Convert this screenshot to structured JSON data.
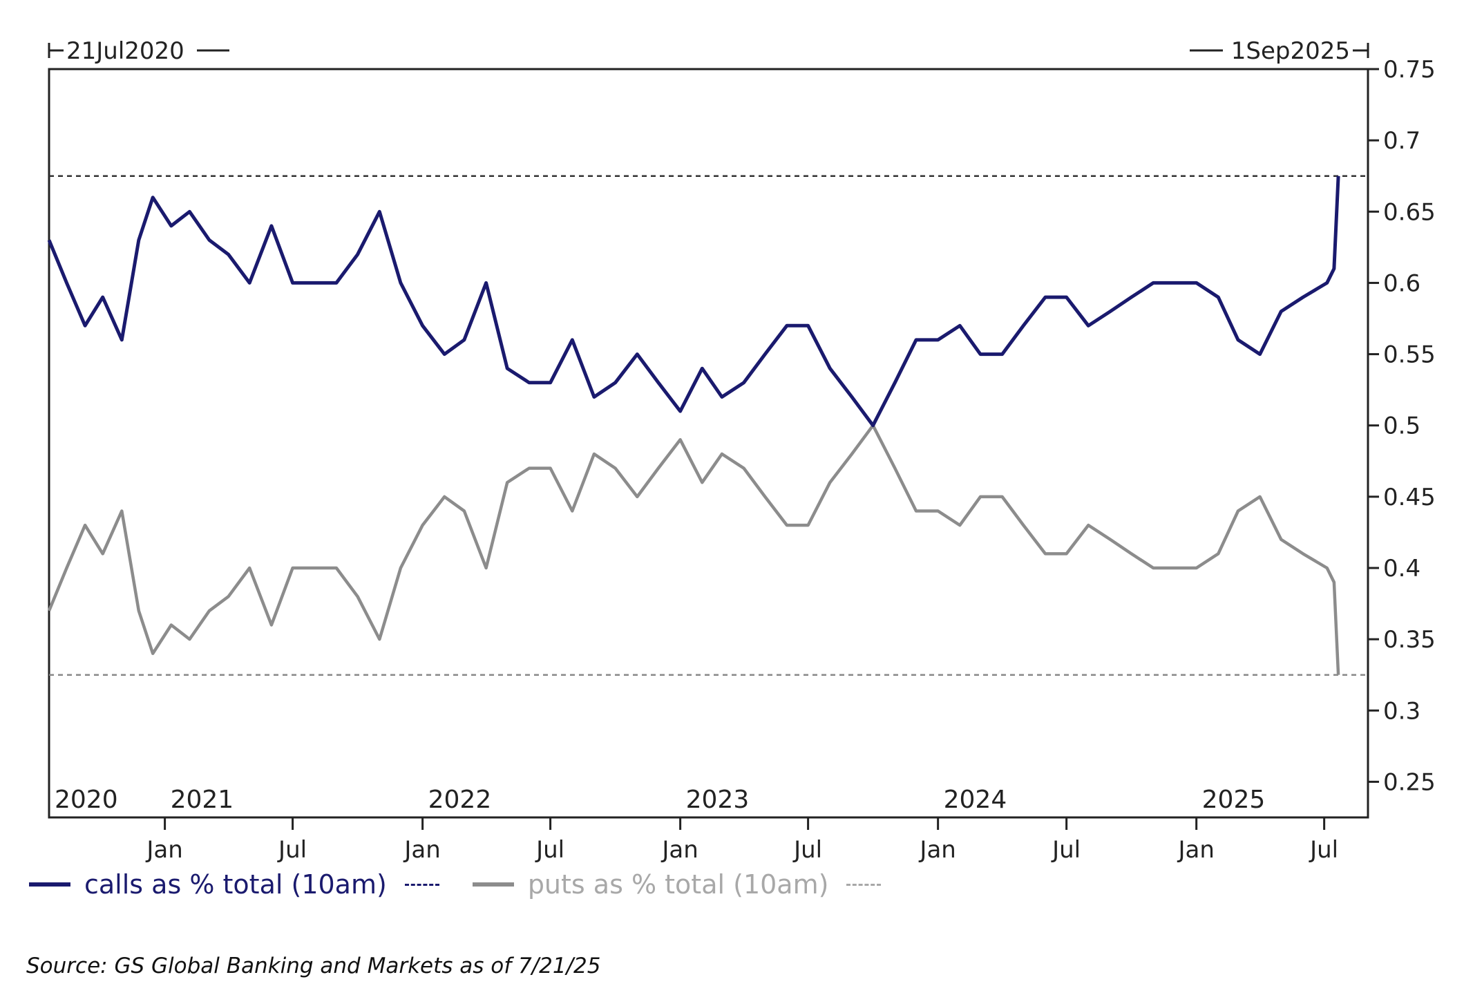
{
  "range_start_label": "21Jul2020",
  "range_end_label": "1Sep2025",
  "source": "Source: GS Global Banking and Markets as of 7/21/25",
  "colors": {
    "calls": "#1a1a6e",
    "puts": "#8c8c8c",
    "axis": "#222222"
  },
  "chart_data": {
    "type": "line",
    "x_range": [
      "2020-07-21",
      "2025-09-01"
    ],
    "y_axis_position": "right",
    "ylim": [
      0.225,
      0.75
    ],
    "yticks": [
      0.25,
      0.3,
      0.35,
      0.4,
      0.45,
      0.5,
      0.55,
      0.6,
      0.65,
      0.7,
      0.75
    ],
    "ytick_labels": [
      "0.25",
      "0.3",
      "0.35",
      "0.4",
      "0.45",
      "0.5",
      "0.55",
      "0.6",
      "0.65",
      "0.7",
      "0.75"
    ],
    "xticks": [
      {
        "date": "2021-01-01",
        "label": "Jan"
      },
      {
        "date": "2021-07-01",
        "label": "Jul"
      },
      {
        "date": "2022-01-01",
        "label": "Jan"
      },
      {
        "date": "2022-07-01",
        "label": "Jul"
      },
      {
        "date": "2023-01-01",
        "label": "Jan"
      },
      {
        "date": "2023-07-01",
        "label": "Jul"
      },
      {
        "date": "2024-01-01",
        "label": "Jan"
      },
      {
        "date": "2024-07-01",
        "label": "Jul"
      },
      {
        "date": "2025-01-01",
        "label": "Jan"
      },
      {
        "date": "2025-07-01",
        "label": "Jul"
      }
    ],
    "year_labels": [
      {
        "date": "2020-07-21",
        "label": "2020"
      },
      {
        "date": "2021-01-01",
        "label": "2021"
      },
      {
        "date": "2022-01-01",
        "label": "2022"
      },
      {
        "date": "2023-01-01",
        "label": "2023"
      },
      {
        "date": "2024-01-01",
        "label": "2024"
      },
      {
        "date": "2025-01-01",
        "label": "2025"
      }
    ],
    "reference_lines": [
      {
        "series": "calls as % total (10am)",
        "y": 0.675
      },
      {
        "series": "puts as % total (10am)",
        "y": 0.325
      }
    ],
    "legend_placement": "bottom-left",
    "grid": false,
    "series": [
      {
        "name": "calls as % total (10am)",
        "values": [
          [
            "2020-07-21",
            0.63
          ],
          [
            "2020-08-15",
            0.6
          ],
          [
            "2020-09-10",
            0.57
          ],
          [
            "2020-10-05",
            0.59
          ],
          [
            "2020-11-01",
            0.56
          ],
          [
            "2020-11-25",
            0.63
          ],
          [
            "2020-12-15",
            0.66
          ],
          [
            "2021-01-10",
            0.64
          ],
          [
            "2021-02-05",
            0.65
          ],
          [
            "2021-03-05",
            0.63
          ],
          [
            "2021-04-01",
            0.62
          ],
          [
            "2021-05-01",
            0.6
          ],
          [
            "2021-06-01",
            0.64
          ],
          [
            "2021-07-01",
            0.6
          ],
          [
            "2021-08-01",
            0.6
          ],
          [
            "2021-09-01",
            0.6
          ],
          [
            "2021-10-01",
            0.62
          ],
          [
            "2021-11-01",
            0.65
          ],
          [
            "2021-12-01",
            0.6
          ],
          [
            "2022-01-01",
            0.57
          ],
          [
            "2022-02-01",
            0.55
          ],
          [
            "2022-03-01",
            0.56
          ],
          [
            "2022-04-01",
            0.6
          ],
          [
            "2022-05-01",
            0.54
          ],
          [
            "2022-06-01",
            0.53
          ],
          [
            "2022-07-01",
            0.53
          ],
          [
            "2022-08-01",
            0.56
          ],
          [
            "2022-09-01",
            0.52
          ],
          [
            "2022-10-01",
            0.53
          ],
          [
            "2022-11-01",
            0.55
          ],
          [
            "2022-12-01",
            0.53
          ],
          [
            "2023-01-01",
            0.51
          ],
          [
            "2023-02-01",
            0.54
          ],
          [
            "2023-03-01",
            0.52
          ],
          [
            "2023-04-01",
            0.53
          ],
          [
            "2023-05-01",
            0.55
          ],
          [
            "2023-06-01",
            0.57
          ],
          [
            "2023-07-01",
            0.57
          ],
          [
            "2023-08-01",
            0.54
          ],
          [
            "2023-09-01",
            0.52
          ],
          [
            "2023-10-01",
            0.5
          ],
          [
            "2023-11-01",
            0.53
          ],
          [
            "2023-12-01",
            0.56
          ],
          [
            "2024-01-01",
            0.56
          ],
          [
            "2024-02-01",
            0.57
          ],
          [
            "2024-03-01",
            0.55
          ],
          [
            "2024-04-01",
            0.55
          ],
          [
            "2024-05-01",
            0.57
          ],
          [
            "2024-06-01",
            0.59
          ],
          [
            "2024-07-01",
            0.59
          ],
          [
            "2024-08-01",
            0.57
          ],
          [
            "2024-09-01",
            0.58
          ],
          [
            "2024-10-01",
            0.59
          ],
          [
            "2024-11-01",
            0.6
          ],
          [
            "2024-12-01",
            0.6
          ],
          [
            "2025-01-01",
            0.6
          ],
          [
            "2025-02-01",
            0.59
          ],
          [
            "2025-03-01",
            0.56
          ],
          [
            "2025-04-01",
            0.55
          ],
          [
            "2025-05-01",
            0.58
          ],
          [
            "2025-06-01",
            0.59
          ],
          [
            "2025-07-05",
            0.6
          ],
          [
            "2025-07-15",
            0.61
          ],
          [
            "2025-07-21",
            0.675
          ]
        ]
      },
      {
        "name": "puts as % total (10am)",
        "values": [
          [
            "2020-07-21",
            0.37
          ],
          [
            "2020-08-15",
            0.4
          ],
          [
            "2020-09-10",
            0.43
          ],
          [
            "2020-10-05",
            0.41
          ],
          [
            "2020-11-01",
            0.44
          ],
          [
            "2020-11-25",
            0.37
          ],
          [
            "2020-12-15",
            0.34
          ],
          [
            "2021-01-10",
            0.36
          ],
          [
            "2021-02-05",
            0.35
          ],
          [
            "2021-03-05",
            0.37
          ],
          [
            "2021-04-01",
            0.38
          ],
          [
            "2021-05-01",
            0.4
          ],
          [
            "2021-06-01",
            0.36
          ],
          [
            "2021-07-01",
            0.4
          ],
          [
            "2021-08-01",
            0.4
          ],
          [
            "2021-09-01",
            0.4
          ],
          [
            "2021-10-01",
            0.38
          ],
          [
            "2021-11-01",
            0.35
          ],
          [
            "2021-12-01",
            0.4
          ],
          [
            "2022-01-01",
            0.43
          ],
          [
            "2022-02-01",
            0.45
          ],
          [
            "2022-03-01",
            0.44
          ],
          [
            "2022-04-01",
            0.4
          ],
          [
            "2022-05-01",
            0.46
          ],
          [
            "2022-06-01",
            0.47
          ],
          [
            "2022-07-01",
            0.47
          ],
          [
            "2022-08-01",
            0.44
          ],
          [
            "2022-09-01",
            0.48
          ],
          [
            "2022-10-01",
            0.47
          ],
          [
            "2022-11-01",
            0.45
          ],
          [
            "2022-12-01",
            0.47
          ],
          [
            "2023-01-01",
            0.49
          ],
          [
            "2023-02-01",
            0.46
          ],
          [
            "2023-03-01",
            0.48
          ],
          [
            "2023-04-01",
            0.47
          ],
          [
            "2023-05-01",
            0.45
          ],
          [
            "2023-06-01",
            0.43
          ],
          [
            "2023-07-01",
            0.43
          ],
          [
            "2023-08-01",
            0.46
          ],
          [
            "2023-09-01",
            0.48
          ],
          [
            "2023-10-01",
            0.5
          ],
          [
            "2023-11-01",
            0.47
          ],
          [
            "2023-12-01",
            0.44
          ],
          [
            "2024-01-01",
            0.44
          ],
          [
            "2024-02-01",
            0.43
          ],
          [
            "2024-03-01",
            0.45
          ],
          [
            "2024-04-01",
            0.45
          ],
          [
            "2024-05-01",
            0.43
          ],
          [
            "2024-06-01",
            0.41
          ],
          [
            "2024-07-01",
            0.41
          ],
          [
            "2024-08-01",
            0.43
          ],
          [
            "2024-09-01",
            0.42
          ],
          [
            "2024-10-01",
            0.41
          ],
          [
            "2024-11-01",
            0.4
          ],
          [
            "2024-12-01",
            0.4
          ],
          [
            "2025-01-01",
            0.4
          ],
          [
            "2025-02-01",
            0.41
          ],
          [
            "2025-03-01",
            0.44
          ],
          [
            "2025-04-01",
            0.45
          ],
          [
            "2025-05-01",
            0.42
          ],
          [
            "2025-06-01",
            0.41
          ],
          [
            "2025-07-05",
            0.4
          ],
          [
            "2025-07-15",
            0.39
          ],
          [
            "2025-07-21",
            0.325
          ]
        ]
      }
    ]
  }
}
